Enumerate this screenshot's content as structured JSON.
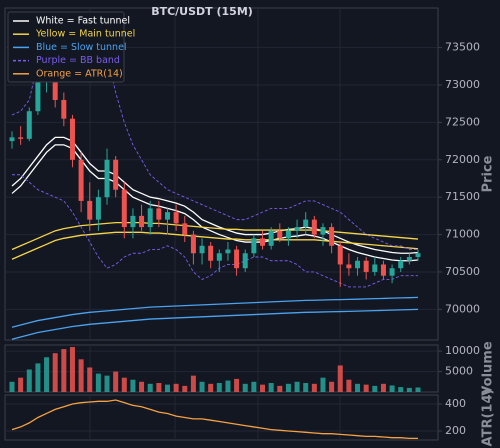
{
  "chart_data": [
    {
      "type": "candlestick",
      "title": "BTC/USDT (15M)",
      "ylabel": "Price",
      "ylim": [
        69590,
        74030
      ],
      "yticks": [
        70000,
        70500,
        71000,
        71500,
        72000,
        72500,
        73000,
        73500
      ],
      "grid": true,
      "up_color": "#26a69a",
      "down_color": "#ef5350",
      "open": [
        72250,
        72300,
        72280,
        72650,
        73050,
        73100,
        72800,
        72550,
        72000,
        71450,
        71200,
        71500,
        72000,
        71600,
        71100,
        71250,
        71100,
        71350,
        71200,
        71300,
        71150,
        71000,
        70750,
        70850,
        70650,
        70750,
        70800,
        70550,
        70750,
        70950,
        70850,
        71050,
        70950,
        71050,
        71100,
        71200,
        71000,
        71100,
        70850,
        70600,
        70550,
        70650,
        70500,
        70600,
        70450,
        70550,
        70650,
        70700
      ],
      "high": [
        72380,
        72450,
        72700,
        73300,
        73400,
        73150,
        72900,
        72600,
        72100,
        71700,
        71600,
        72150,
        72050,
        71700,
        71350,
        71400,
        71450,
        71450,
        71350,
        71400,
        71250,
        71050,
        70950,
        70900,
        70800,
        70900,
        70850,
        70800,
        71000,
        71050,
        71100,
        71150,
        71100,
        71200,
        71300,
        71250,
        71150,
        71150,
        70900,
        70750,
        70700,
        70700,
        70700,
        70650,
        70600,
        70700,
        70750,
        70800
      ],
      "low": [
        72150,
        72200,
        72250,
        72600,
        72900,
        72700,
        72450,
        71900,
        71300,
        71050,
        71050,
        71400,
        71500,
        70950,
        70950,
        71050,
        71000,
        71100,
        71000,
        71050,
        70900,
        70600,
        70600,
        70550,
        70500,
        70650,
        70450,
        70500,
        70700,
        70800,
        70800,
        70900,
        70850,
        70950,
        71000,
        70950,
        70850,
        70750,
        70300,
        70450,
        70450,
        70400,
        70450,
        70400,
        70350,
        70500,
        70600,
        70650
      ],
      "close": [
        72300,
        72280,
        72650,
        73050,
        73100,
        72800,
        72550,
        72000,
        71450,
        71200,
        71500,
        72000,
        71600,
        71100,
        71250,
        71100,
        71350,
        71200,
        71300,
        71150,
        71000,
        70750,
        70850,
        70650,
        70750,
        70800,
        70550,
        70750,
        70950,
        70850,
        71050,
        70950,
        71050,
        71100,
        71200,
        71000,
        71100,
        70850,
        70600,
        70550,
        70650,
        70500,
        70600,
        70450,
        70550,
        70650,
        70700,
        70750
      ],
      "series": [
        {
          "name": "White = Fast tunnel",
          "color": "#ffffff",
          "dash": false,
          "lines": [
            [
              71650,
              71750,
              71900,
              72050,
              72200,
              72300,
              72300,
              72250,
              72100,
              71950,
              71850,
              71850,
              71800,
              71700,
              71600,
              71550,
              71500,
              71480,
              71450,
              71420,
              71380,
              71300,
              71200,
              71150,
              71100,
              71060,
              71020,
              71000,
              71000,
              71000,
              71020,
              71050,
              71070,
              71080,
              71100,
              71080,
              71050,
              71000,
              70950,
              70900,
              70860,
              70830,
              70800,
              70780,
              70760,
              70750,
              70750,
              70760
            ],
            [
              71550,
              71650,
              71800,
              71950,
              72100,
              72200,
              72200,
              72150,
              72000,
              71850,
              71750,
              71750,
              71700,
              71600,
              71500,
              71450,
              71400,
              71380,
              71350,
              71320,
              71280,
              71200,
              71100,
              71050,
              71000,
              70960,
              70920,
              70900,
              70900,
              70900,
              70920,
              70950,
              70970,
              70980,
              71000,
              70980,
              70950,
              70900,
              70850,
              70800,
              70760,
              70730,
              70700,
              70680,
              70660,
              70650,
              70650,
              70660
            ]
          ]
        },
        {
          "name": "Yellow = Main tunnel",
          "color": "#f5d547",
          "dash": false,
          "lines": [
            [
              70800,
              70850,
              70900,
              70950,
              71000,
              71050,
              71080,
              71100,
              71120,
              71130,
              71140,
              71150,
              71160,
              71160,
              71160,
              71160,
              71150,
              71150,
              71140,
              71130,
              71120,
              71110,
              71100,
              71090,
              71080,
              71070,
              71070,
              71060,
              71060,
              71060,
              71060,
              71060,
              71060,
              71060,
              71060,
              71060,
              71050,
              71040,
              71030,
              71020,
              71010,
              71000,
              70990,
              70980,
              70970,
              70960,
              70950,
              70940
            ],
            [
              70670,
              70720,
              70770,
              70820,
              70870,
              70920,
              70950,
              70970,
              70990,
              71000,
              71010,
              71020,
              71030,
              71030,
              71030,
              71030,
              71020,
              71020,
              71010,
              71000,
              70990,
              70980,
              70970,
              70960,
              70950,
              70940,
              70940,
              70930,
              70930,
              70930,
              70930,
              70930,
              70930,
              70930,
              70930,
              70930,
              70920,
              70910,
              70900,
              70890,
              70880,
              70870,
              70860,
              70850,
              70840,
              70830,
              70820,
              70810
            ]
          ]
        },
        {
          "name": "Blue = Slow tunnel",
          "color": "#4aa3f0",
          "dash": false,
          "lines": [
            [
              69760,
              69790,
              69820,
              69850,
              69870,
              69890,
              69910,
              69930,
              69945,
              69960,
              69970,
              69980,
              69990,
              70000,
              70010,
              70020,
              70030,
              70035,
              70040,
              70045,
              70050,
              70055,
              70060,
              70065,
              70070,
              70075,
              70080,
              70085,
              70090,
              70095,
              70100,
              70105,
              70110,
              70115,
              70120,
              70122,
              70125,
              70128,
              70130,
              70133,
              70136,
              70140,
              70143,
              70146,
              70150,
              70153,
              70156,
              70160
            ],
            [
              69600,
              69630,
              69660,
              69690,
              69710,
              69730,
              69750,
              69770,
              69785,
              69800,
              69810,
              69820,
              69830,
              69840,
              69850,
              69860,
              69870,
              69875,
              69880,
              69885,
              69890,
              69895,
              69900,
              69905,
              69910,
              69915,
              69920,
              69925,
              69930,
              69935,
              69940,
              69945,
              69950,
              69955,
              69960,
              69962,
              69965,
              69968,
              69970,
              69973,
              69976,
              69980,
              69983,
              69986,
              69990,
              69993,
              69996,
              70000
            ]
          ]
        },
        {
          "name": "Purple = BB band",
          "color": "#7b5cf0",
          "dash": true,
          "lines": [
            [
              72600,
              72650,
              72800,
              73300,
              73700,
              73900,
              73950,
              73950,
              73900,
              73700,
              73600,
              73400,
              72900,
              72500,
              72200,
              72000,
              71800,
              71700,
              71600,
              71550,
              71500,
              71450,
              71400,
              71350,
              71300,
              71250,
              71200,
              71200,
              71250,
              71300,
              71350,
              71350,
              71350,
              71400,
              71450,
              71450,
              71400,
              71350,
              71300,
              71200,
              71100,
              71000,
              70950,
              70900,
              70850,
              70850,
              70800,
              70800
            ],
            [
              71800,
              71800,
              71700,
              71600,
              71550,
              71500,
              71450,
              71300,
              71100,
              70900,
              70700,
              70550,
              70600,
              70700,
              70750,
              70750,
              70800,
              70800,
              70850,
              70800,
              70700,
              70500,
              70400,
              70450,
              70550,
              70600,
              70600,
              70650,
              70700,
              70700,
              70650,
              70650,
              70650,
              70600,
              70500,
              70500,
              70450,
              70400,
              70350,
              70300,
              70300,
              70300,
              70350,
              70400,
              70400,
              70450,
              70450,
              70450
            ]
          ]
        }
      ]
    },
    {
      "type": "bar",
      "ylabel": "Volume",
      "ylim": [
        0,
        11500
      ],
      "yticks": [
        5000,
        10000
      ],
      "grid": true,
      "values": [
        2500,
        3500,
        5500,
        7000,
        8500,
        9500,
        10500,
        11000,
        8000,
        6000,
        4500,
        4000,
        5000,
        3500,
        3000,
        2500,
        2000,
        2200,
        1800,
        2000,
        1500,
        4000,
        2500,
        2000,
        2200,
        2800,
        3200,
        2000,
        2500,
        1800,
        2200,
        1500,
        2000,
        2500,
        2200,
        2000,
        3500,
        2500,
        6500,
        3000,
        2000,
        1800,
        1500,
        2000,
        1600,
        1200,
        1000,
        1100
      ]
    },
    {
      "type": "line",
      "ylabel": "ATR(14)",
      "ylim": [
        133,
        467
      ],
      "yticks": [
        200,
        400
      ],
      "grid": true,
      "series": [
        {
          "name": "Orange = ATR(14)",
          "color": "#f5a142",
          "values": [
            210,
            230,
            260,
            300,
            330,
            360,
            380,
            400,
            410,
            415,
            420,
            420,
            430,
            410,
            390,
            380,
            360,
            340,
            330,
            310,
            300,
            290,
            290,
            280,
            270,
            260,
            250,
            240,
            230,
            220,
            210,
            205,
            200,
            195,
            190,
            185,
            180,
            180,
            175,
            170,
            165,
            160,
            160,
            155,
            150,
            150,
            145,
            145
          ]
        }
      ]
    }
  ]
}
